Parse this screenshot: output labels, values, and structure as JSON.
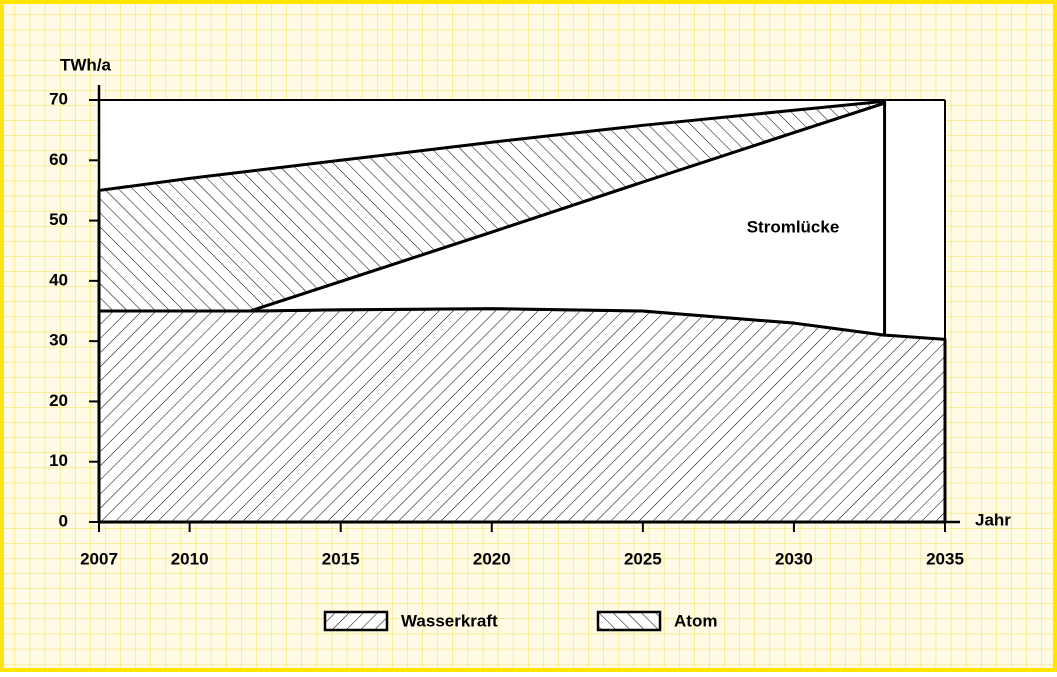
{
  "chart_data": {
    "type": "stacked-area",
    "y_label": "TWh/a",
    "x_label": "Jahr",
    "x": [
      2007,
      2010,
      2012,
      2015,
      2020,
      2025,
      2030,
      2033,
      2035
    ],
    "series": [
      {
        "name": "Wasserkraft",
        "color": "#000000",
        "hatch": "forward",
        "legend": true,
        "values": [
          35,
          35,
          35,
          35.2,
          35.4,
          35,
          33,
          31,
          30.3
        ]
      },
      {
        "name": "Stromlücke",
        "color": "#ffffff",
        "hatch": null,
        "legend": false,
        "values": [
          0,
          0,
          0,
          4.7,
          12.7,
          21.4,
          31.6,
          38.5,
          null
        ]
      },
      {
        "name": "Atom",
        "color": "#000000",
        "hatch": "backward",
        "legend": true,
        "values": [
          20,
          22,
          23.2,
          20.1,
          14.9,
          9.4,
          3.7,
          0.3,
          null
        ]
      }
    ],
    "xlim": [
      2007,
      2035
    ],
    "xticks": [
      2007,
      2010,
      2015,
      2020,
      2025,
      2030,
      2035
    ],
    "ylim": [
      0,
      70
    ],
    "yticks": [
      0,
      10,
      20,
      30,
      40,
      50,
      60,
      70
    ]
  }
}
